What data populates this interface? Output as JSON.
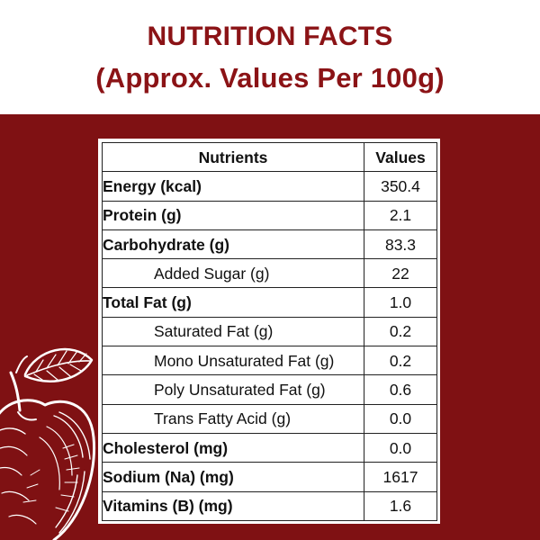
{
  "header": {
    "title_line1": "NUTRITION FACTS",
    "title_line2": "(Approx. Values Per 100g)"
  },
  "colors": {
    "brand_red": "#8b1316",
    "panel_red": "#7f1113",
    "table_bg": "#ffffff"
  },
  "decoration": {
    "icon": "apple-sketch-icon"
  },
  "table": {
    "headers": {
      "nutrients": "Nutrients",
      "values": "Values"
    },
    "rows": [
      {
        "name": "Energy (kcal)",
        "value": "350.4"
      },
      {
        "name": "Protein (g)",
        "value": "2.1"
      },
      {
        "name": "Carbohydrate (g)",
        "value": "83.3"
      },
      {
        "name": "Added Sugar (g)",
        "value": "22"
      },
      {
        "name": "Total Fat (g)",
        "value": "1.0"
      },
      {
        "name": "Saturated Fat (g)",
        "value": "0.2"
      },
      {
        "name": "Mono Unsaturated Fat (g)",
        "value": "0.2"
      },
      {
        "name": "Poly Unsaturated Fat (g)",
        "value": "0.6"
      },
      {
        "name": "Trans Fatty Acid (g)",
        "value": "0.0"
      },
      {
        "name": "Cholesterol (mg)",
        "value": "0.0"
      },
      {
        "name": "Sodium (Na) (mg)",
        "value": "1617"
      },
      {
        "name": "Vitamins (B) (mg)",
        "value": "1.6"
      }
    ]
  }
}
